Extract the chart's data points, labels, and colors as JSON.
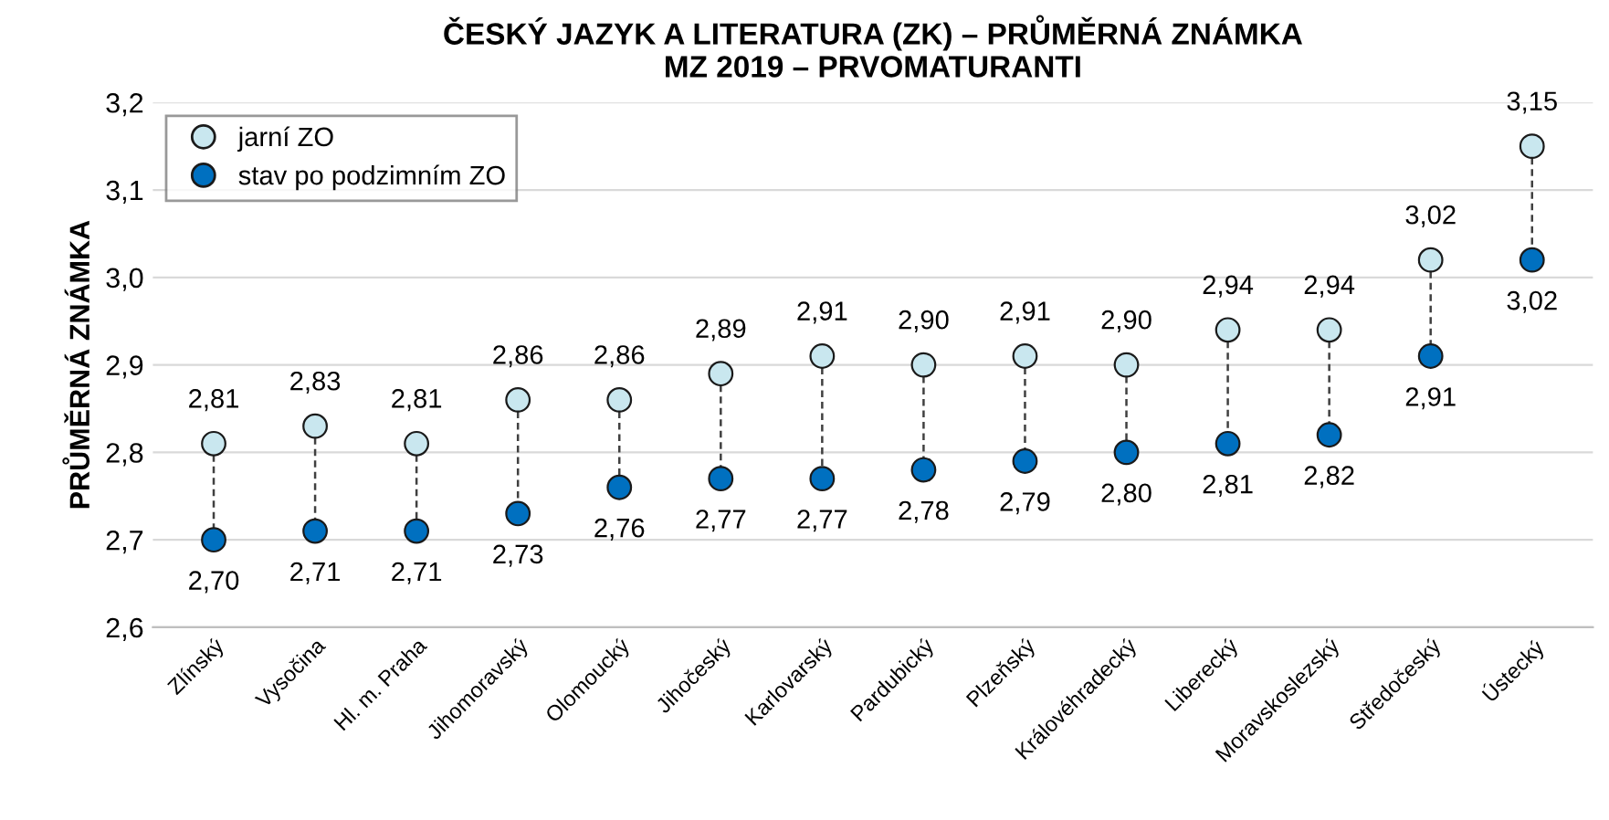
{
  "chart_data": {
    "type": "scatter",
    "title": "ČESKÝ JAZYK A LITERATURA (ZK) – PRŮMĚRNÁ ZNÁMKA\nMZ 2019 – PRVOMATURANTI",
    "ylabel": "PRŮMĚRNÁ ZNÁMKA",
    "categories": [
      "Zlínský",
      "Vysočina",
      "Hl. m. Praha",
      "Jihomoravský",
      "Olomoucký",
      "Jihočeský",
      "Karlovarský",
      "Pardubický",
      "Plzeňský",
      "Královéhradecký",
      "Liberecký",
      "Moravskoslezský",
      "Středočeský",
      "Ústecký"
    ],
    "series": [
      {
        "name": "jarní ZO",
        "color": "#c9e7ef",
        "values": [
          2.81,
          2.83,
          2.81,
          2.86,
          2.86,
          2.89,
          2.91,
          2.9,
          2.91,
          2.9,
          2.94,
          2.94,
          3.02,
          3.15
        ],
        "value_labels": [
          "2,81",
          "2,83",
          "2,81",
          "2,86",
          "2,86",
          "2,89",
          "2,91",
          "2,90",
          "2,91",
          "2,90",
          "2,94",
          "2,94",
          "3,02",
          "3,15"
        ]
      },
      {
        "name": "stav po podzimním ZO",
        "color": "#0070c0",
        "values": [
          2.7,
          2.71,
          2.71,
          2.73,
          2.76,
          2.77,
          2.77,
          2.78,
          2.79,
          2.8,
          2.81,
          2.82,
          2.91,
          3.02
        ],
        "value_labels": [
          "2,70",
          "2,71",
          "2,71",
          "2,73",
          "2,76",
          "2,77",
          "2,77",
          "2,78",
          "2,79",
          "2,80",
          "2,81",
          "2,82",
          "2,91",
          "3,02"
        ]
      }
    ],
    "ylim": [
      2.6,
      3.2
    ],
    "yticks": [
      {
        "value": 2.6,
        "label": "2,6"
      },
      {
        "value": 2.7,
        "label": "2,7"
      },
      {
        "value": 2.8,
        "label": "2,8"
      },
      {
        "value": 2.9,
        "label": "2,9"
      },
      {
        "value": 3.0,
        "label": "3,0"
      },
      {
        "value": 3.1,
        "label": "3,1"
      },
      {
        "value": 3.2,
        "label": "3,2"
      }
    ],
    "grid": "y",
    "legend": "top left",
    "marker": "circle"
  }
}
